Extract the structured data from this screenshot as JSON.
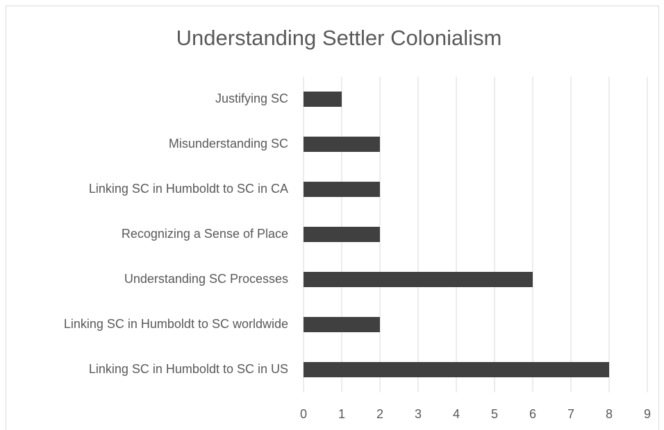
{
  "chart_data": {
    "type": "bar",
    "orientation": "horizontal",
    "title": "Understanding Settler Colonialism",
    "categories": [
      "Justifying SC",
      "Misunderstanding SC",
      "Linking SC in Humboldt to SC in CA",
      "Recognizing a Sense of Place",
      "Understanding SC Processes",
      "Linking SC in Humboldt to SC worldwide",
      "Linking SC in Humboldt to SC in US"
    ],
    "values": [
      1,
      2,
      2,
      2,
      6,
      2,
      8
    ],
    "color": "#404040",
    "xlim": [
      0,
      9
    ],
    "xticks": [
      0,
      1,
      2,
      3,
      4,
      5,
      6,
      7,
      8,
      9
    ],
    "grid": true
  }
}
